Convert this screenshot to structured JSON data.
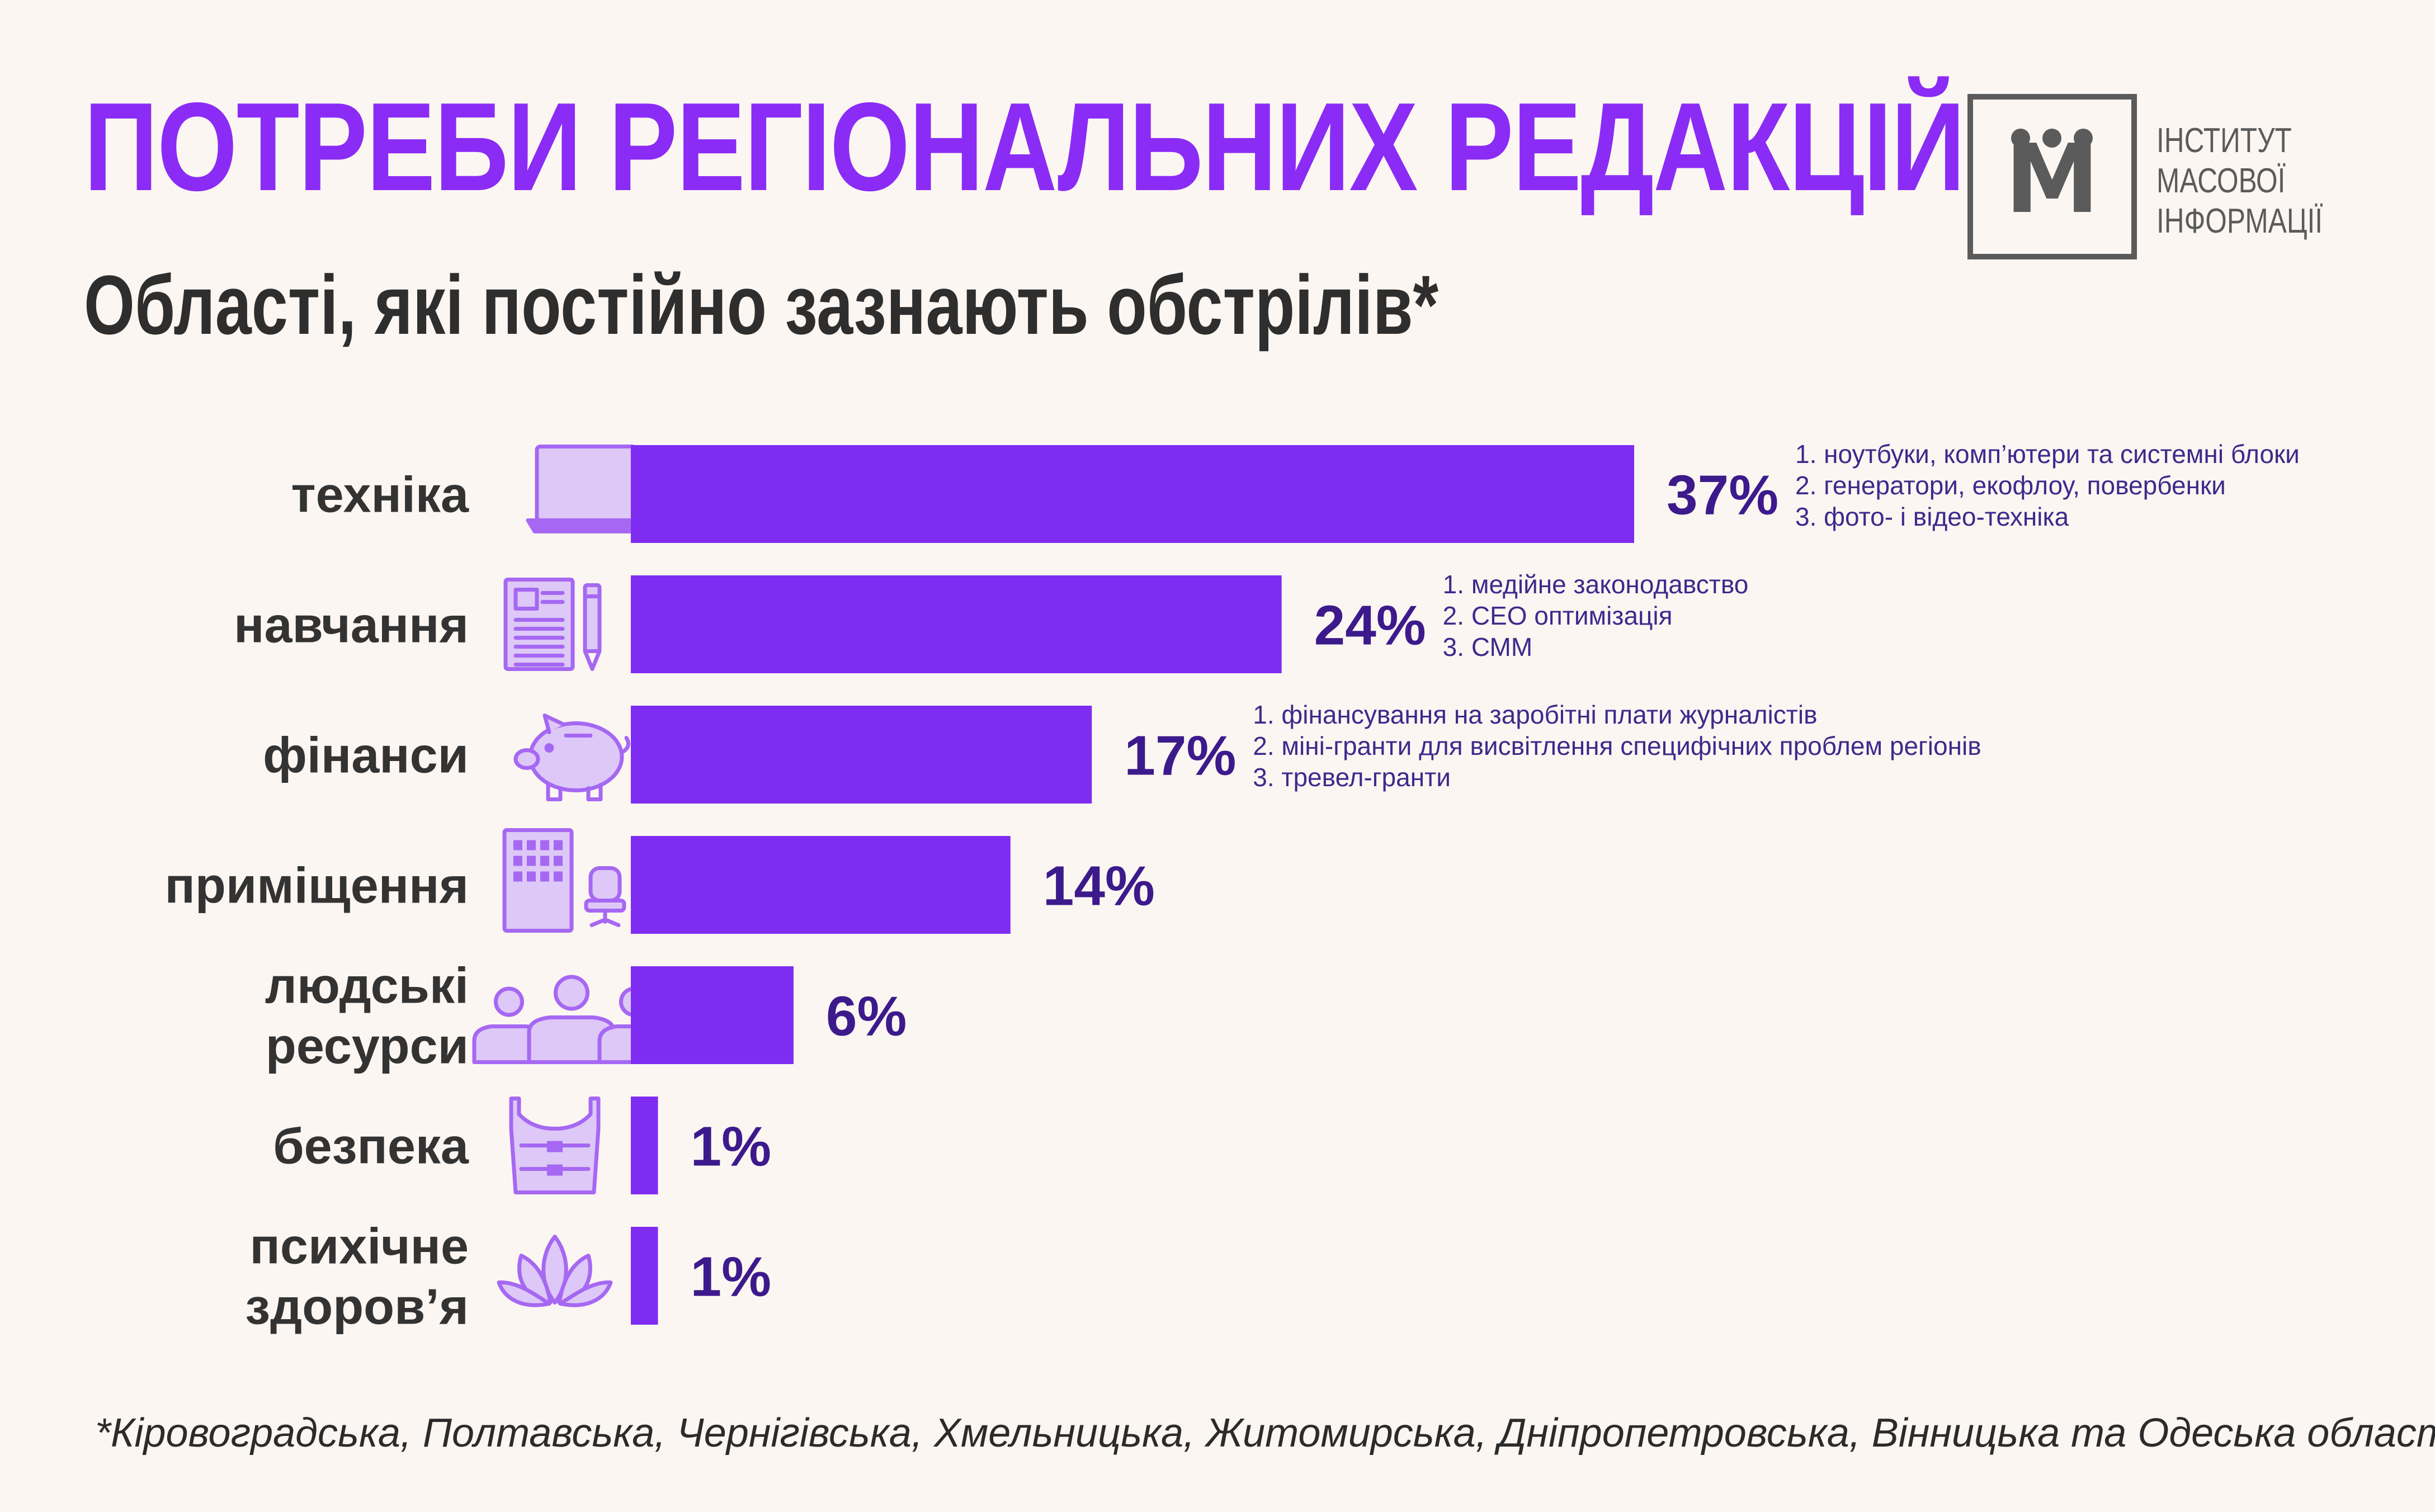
{
  "title": "ПОТРЕБИ РЕГІОНАЛЬНИХ РЕДАКЦІЙ",
  "subtitle": "Області, які постійно зазнають обстрілів*",
  "logo": {
    "mark": "М",
    "lines": [
      "ІНСТИТУТ",
      "МАСОВОЇ",
      "ІНФОРМАЦІЇ"
    ]
  },
  "footnote": "*Кіровоградська, Полтавська, Чернігівська, Хмельницька, Житомирська, Дніпропетровська, Вінницька та Одеська області",
  "colors": {
    "accent": "#8a2cf5",
    "bar": "#7f2cf2",
    "icon": "#a668f2",
    "icon_fill": "#ddc8f7",
    "value_text": "#3d1a8c",
    "background": "#fcf6f2"
  },
  "chart_data": {
    "type": "bar",
    "orientation": "horizontal",
    "categories": [
      [
        "техніка"
      ],
      [
        "навчання"
      ],
      [
        "фінанси"
      ],
      [
        "приміщення"
      ],
      [
        "людські",
        "ресурси"
      ],
      [
        "безпека"
      ],
      [
        "психічне",
        "здоров’я"
      ]
    ],
    "icons": [
      "laptop-icon",
      "document-pen-icon",
      "piggy-bank-icon",
      "office-building-chair-icon",
      "people-group-icon",
      "body-armor-icon",
      "lotus-icon"
    ],
    "values": [
      37,
      24,
      17,
      14,
      6,
      1,
      1
    ],
    "value_labels": [
      "37%",
      "24%",
      "17%",
      "14%",
      "6%",
      "1%",
      "1%"
    ],
    "notes": [
      [
        "1. ноутбуки, комп’ютери та системні блоки",
        "2. генератори, екофлоу, повербенки",
        "3. фото- і відео-техніка"
      ],
      [
        "1. медійне законодавство",
        "2. СЕО оптимізація",
        "3. СММ"
      ],
      [
        "1. фінансування на заробітні плати журналістів",
        "2. міні-гранти для висвітлення специфічних проблем регіонів",
        "3. тревел-гранти"
      ],
      [],
      [],
      [],
      []
    ],
    "xlim": [
      0,
      37
    ],
    "grid": false,
    "legend": "none"
  }
}
